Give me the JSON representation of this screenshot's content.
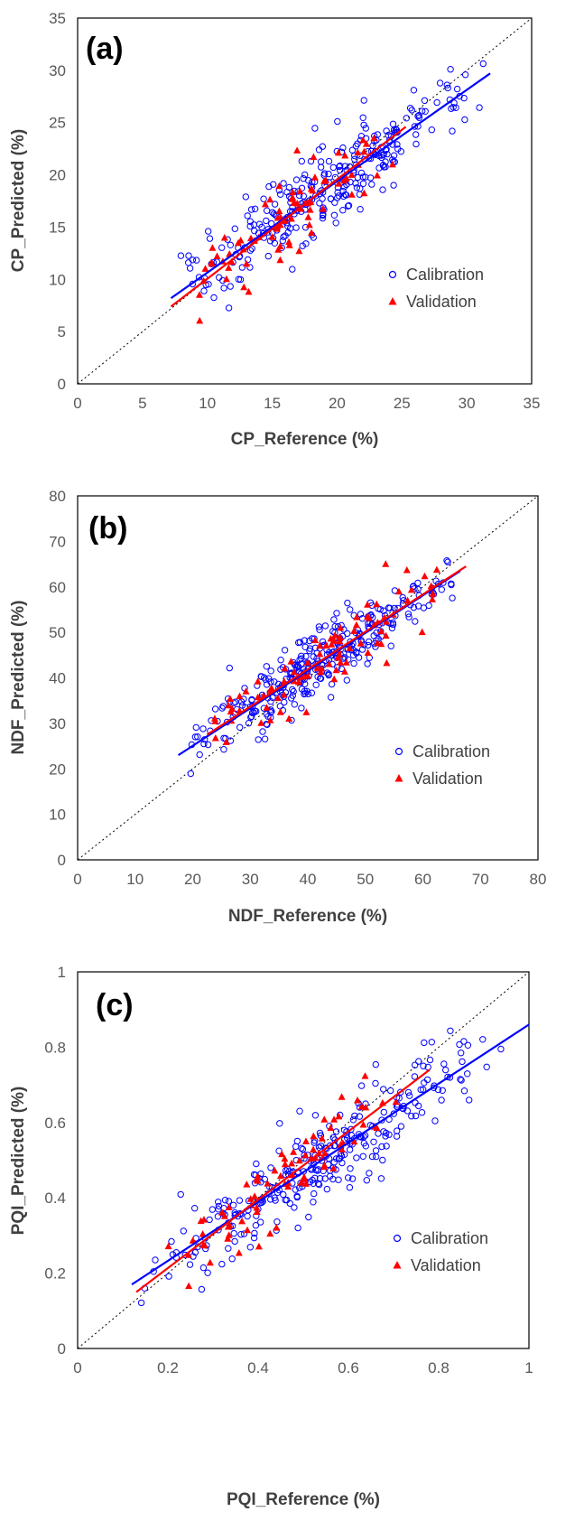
{
  "chart_data": [
    {
      "type": "scatter",
      "panel_label": "(a)",
      "xlabel": "CP_Reference (%)",
      "ylabel": "CP_Predicted (%)",
      "xlim": [
        0,
        35
      ],
      "ylim": [
        0,
        35
      ],
      "xticks": [
        0,
        5,
        10,
        15,
        20,
        25,
        30,
        35
      ],
      "yticks": [
        0,
        5,
        10,
        15,
        20,
        25,
        30,
        35
      ],
      "legend": [
        "Calibration",
        "Validation"
      ],
      "legend_position": "lower-right",
      "colors": {
        "calibration": "#0000ff",
        "validation": "#ff0000",
        "identity": "#000000"
      },
      "seed": 11,
      "n_calibration": 300,
      "n_validation": 80,
      "cal_x_range": [
        7,
        32
      ],
      "val_x_range": [
        7,
        25
      ],
      "spread": 1.9,
      "series": [
        {
          "name": "Calibration",
          "marker": "circle",
          "fit_line": {
            "x": [
              7.2,
              31.8
            ],
            "y": [
              8.2,
              29.7
            ]
          }
        },
        {
          "name": "Validation",
          "marker": "triangle",
          "fit_line": {
            "x": [
              7.2,
              25.3
            ],
            "y": [
              7.4,
              24.6
            ]
          }
        }
      ]
    },
    {
      "type": "scatter",
      "panel_label": "(b)",
      "xlabel": "NDF_Reference (%)",
      "ylabel": "NDF_Predicted (%)",
      "xlim": [
        0,
        80
      ],
      "ylim": [
        0,
        80
      ],
      "xticks": [
        0,
        10,
        20,
        30,
        40,
        50,
        60,
        70,
        80
      ],
      "yticks": [
        0,
        10,
        20,
        30,
        40,
        50,
        60,
        70,
        80
      ],
      "legend": [
        "Calibration",
        "Validation"
      ],
      "legend_position": "lower-right",
      "colors": {
        "calibration": "#0000ff",
        "validation": "#ff0000",
        "identity": "#000000"
      },
      "seed": 23,
      "n_calibration": 320,
      "n_validation": 90,
      "cal_x_range": [
        18,
        67
      ],
      "val_x_range": [
        22,
        67
      ],
      "spread": 3.6,
      "series": [
        {
          "name": "Calibration",
          "marker": "circle",
          "fit_line": {
            "x": [
              17.5,
              66.5
            ],
            "y": [
              23.0,
              63.5
            ]
          }
        },
        {
          "name": "Validation",
          "marker": "triangle",
          "fit_line": {
            "x": [
              22.5,
              67.5
            ],
            "y": [
              27.5,
              64.5
            ]
          }
        }
      ]
    },
    {
      "type": "scatter",
      "panel_label": "(c)",
      "xlabel": "PQI_Reference (%)",
      "ylabel": "PQI_Predicted (%)",
      "xlim": [
        0,
        1
      ],
      "ylim": [
        0,
        1
      ],
      "xticks": [
        0,
        0.2,
        0.4,
        0.6,
        0.8,
        1
      ],
      "yticks": [
        0,
        0.2,
        0.4,
        0.6,
        0.8,
        1
      ],
      "legend": [
        "Calibration",
        "Validation"
      ],
      "legend_position": "lower-right",
      "colors": {
        "calibration": "#0000ff",
        "validation": "#ff0000",
        "identity": "#000000"
      },
      "seed": 37,
      "n_calibration": 300,
      "n_validation": 80,
      "cal_x_range": [
        0.12,
        0.95
      ],
      "val_x_range": [
        0.14,
        0.78
      ],
      "spread": 0.055,
      "series": [
        {
          "name": "Calibration",
          "marker": "circle",
          "fit_line": {
            "x": [
              0.12,
              1.0
            ],
            "y": [
              0.17,
              0.86
            ]
          }
        },
        {
          "name": "Validation",
          "marker": "triangle",
          "fit_line": {
            "x": [
              0.13,
              0.78
            ],
            "y": [
              0.15,
              0.74
            ]
          }
        }
      ]
    }
  ]
}
